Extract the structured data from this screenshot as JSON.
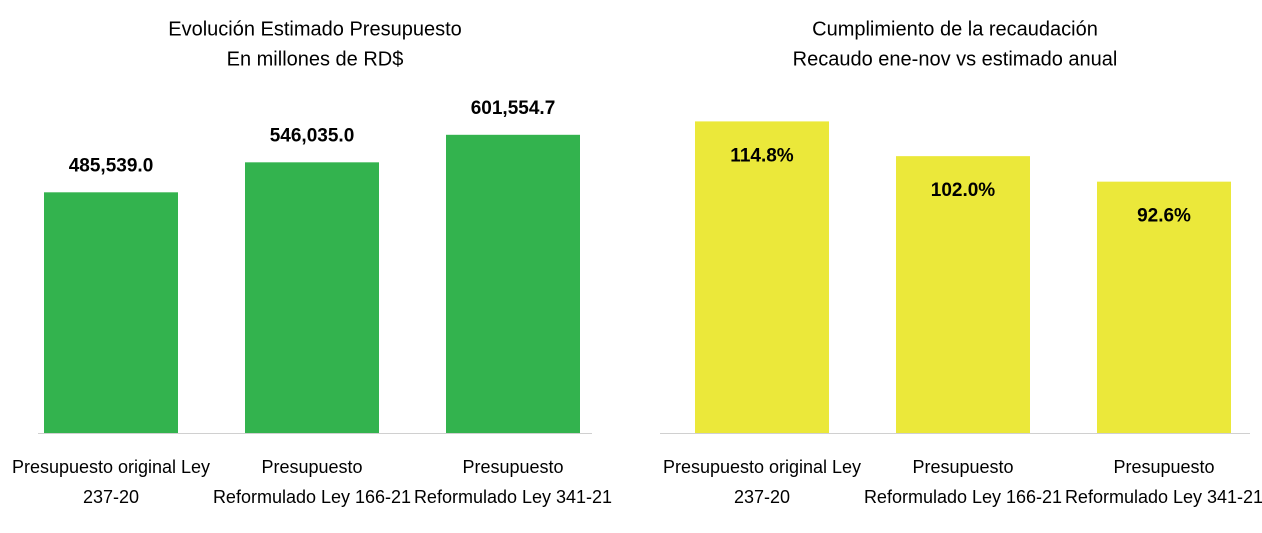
{
  "chart_data": [
    {
      "type": "bar",
      "title": "Evolución Estimado Presupuesto",
      "subtitle": "En millones de RD$",
      "categories": [
        "Presupuesto original Ley 237-20",
        "Presupuesto Reformulado Ley 166-21",
        "Presupuesto Reformulado Ley 341-21"
      ],
      "values": [
        485539.0,
        546035.0,
        601554.7
      ],
      "value_labels": [
        "485,539.0",
        "546,035.0",
        "601,554.7"
      ],
      "color": "#33b34e",
      "ylim": [
        0,
        700000
      ],
      "label_position": "outside_end"
    },
    {
      "type": "bar",
      "title": "Cumplimiento de la recaudación",
      "subtitle": "Recaudo ene-nov vs estimado anual",
      "categories": [
        "Presupuesto original Ley 237-20",
        "Presupuesto Reformulado Ley 166-21",
        "Presupuesto Reformulado Ley 341-21"
      ],
      "values": [
        114.8,
        102.0,
        92.6
      ],
      "value_labels": [
        "114.8%",
        "102.0%",
        "92.6%"
      ],
      "color": "#ebe83a",
      "ylim": [
        0,
        140
      ],
      "label_position": "inside_end"
    }
  ]
}
